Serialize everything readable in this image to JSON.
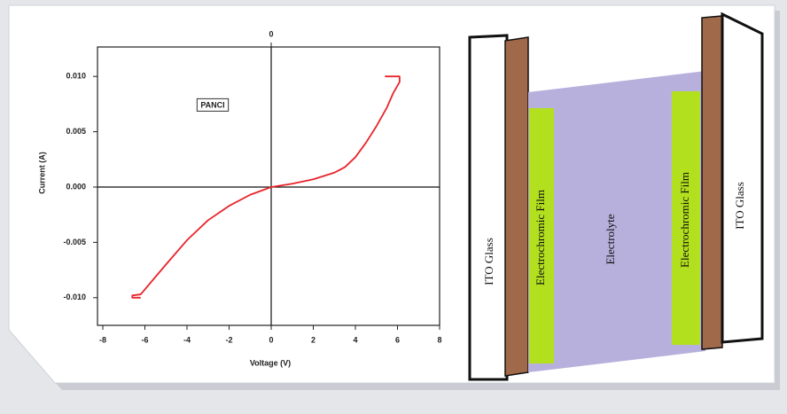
{
  "chart_data": {
    "type": "line",
    "x_label": "Voltage (V)",
    "y_label": "Current (A)",
    "annotation": "PANCl",
    "xlim": [
      -8,
      8
    ],
    "xticks": [
      -8,
      -6,
      -4,
      -2,
      0,
      2,
      4,
      6,
      8
    ],
    "x2ticks": [
      0
    ],
    "ylim": [
      -0.0125,
      0.0125
    ],
    "yticks": [
      {
        "value": -0.01,
        "label": "-0.010"
      },
      -0.005,
      {
        "value": 0,
        "label": "0.000"
      },
      0.005,
      {
        "value": 0.01,
        "label": "0.010"
      }
    ],
    "series": [
      {
        "color": "#e8242a",
        "x": [
          -6.2,
          -6.6,
          -6.6,
          -6.2,
          -5,
          -4,
          -3,
          -2,
          -1,
          0,
          1,
          2,
          3,
          3.5,
          4,
          4.5,
          5,
          5.5,
          5.8,
          6.1,
          6.1,
          5.4
        ],
        "values": [
          -0.01,
          -0.01,
          -0.0098,
          -0.0097,
          -0.007,
          -0.0048,
          -0.003,
          -0.0017,
          -0.0007,
          0,
          0.0003,
          0.0007,
          0.0013,
          0.0018,
          0.0027,
          0.004,
          0.0055,
          0.0072,
          0.0085,
          0.0095,
          0.01,
          0.01
        ]
      }
    ]
  },
  "diagram": {
    "labels": [
      "ITO Glass",
      "Electrochromic Film",
      "Electrolyte",
      "Electrochromic Film",
      "ITO Glass"
    ]
  }
}
